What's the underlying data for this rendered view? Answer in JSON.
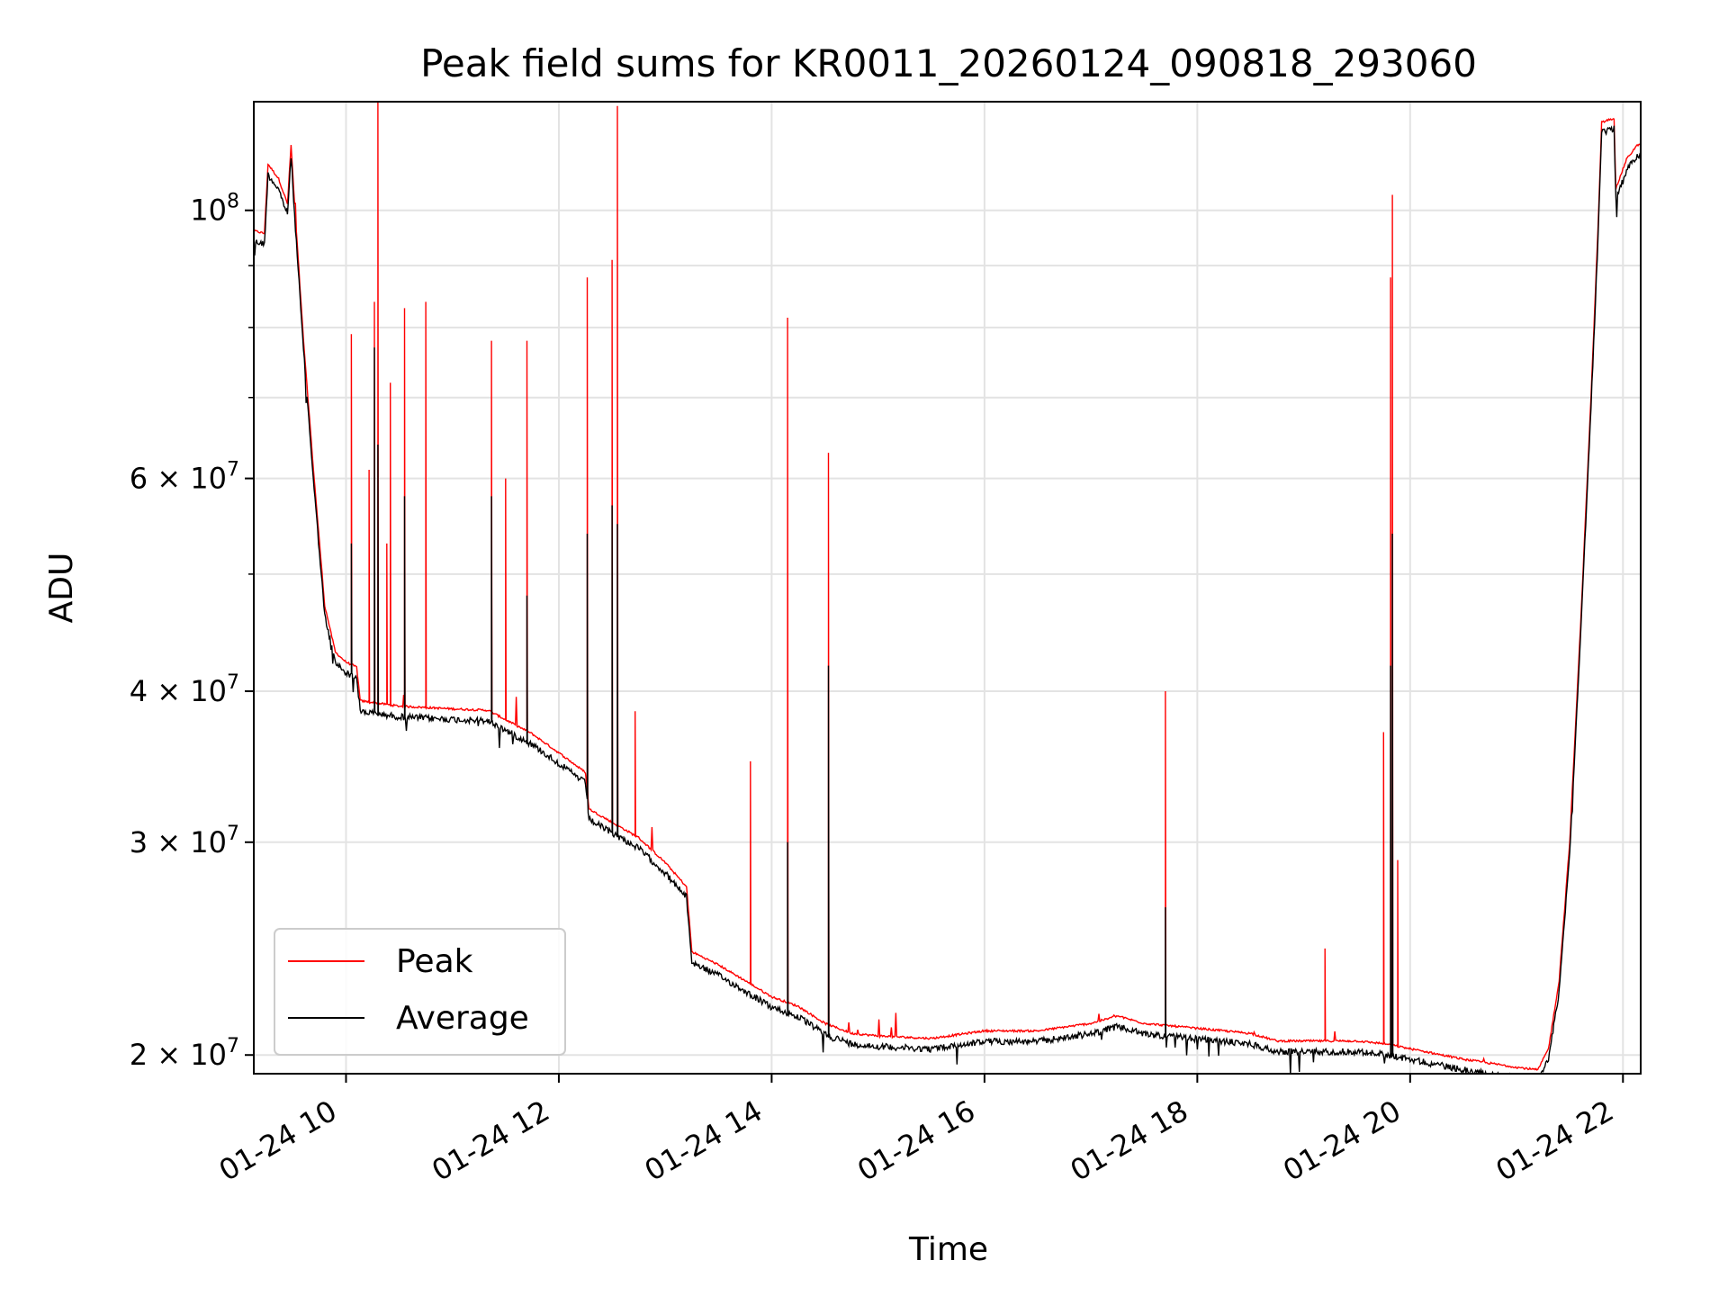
{
  "chart_data": {
    "type": "line",
    "title": "Peak field sums for KR0011_20260124_090818_293060",
    "xlabel": "Time",
    "ylabel": "ADU",
    "yscale": "log",
    "ylim": [
      19300000,
      123000000
    ],
    "xlim": [
      "2026-01-24 09:08",
      "2026-01-24 22:10"
    ],
    "grid": true,
    "legend_position": "lower-left",
    "x_ticks": [
      {
        "value": "2026-01-24 10:00",
        "label": "01-24 10"
      },
      {
        "value": "2026-01-24 12:00",
        "label": "01-24 12"
      },
      {
        "value": "2026-01-24 14:00",
        "label": "01-24 14"
      },
      {
        "value": "2026-01-24 16:00",
        "label": "01-24 16"
      },
      {
        "value": "2026-01-24 18:00",
        "label": "01-24 18"
      },
      {
        "value": "2026-01-24 20:00",
        "label": "01-24 20"
      },
      {
        "value": "2026-01-24 22:00",
        "label": "01-24 22"
      }
    ],
    "y_ticks": [
      {
        "value": 20000000,
        "mantissa": "2 × 10",
        "exp": "7"
      },
      {
        "value": 30000000,
        "mantissa": "3 × 10",
        "exp": "7"
      },
      {
        "value": 40000000,
        "mantissa": "4 × 10",
        "exp": "7"
      },
      {
        "value": 60000000,
        "mantissa": "6 × 10",
        "exp": "7"
      },
      {
        "value": 100000000,
        "mantissa": "10",
        "exp": "8"
      }
    ],
    "y_minor_ticks": [
      50000000,
      70000000,
      80000000,
      90000000
    ],
    "series": [
      {
        "name": "Peak",
        "color": "#ff0000",
        "baseline": [
          [
            "2026-01-24 09:08",
            96000000
          ],
          [
            "2026-01-24 09:14",
            95500000
          ],
          [
            "2026-01-24 09:16",
            109000000
          ],
          [
            "2026-01-24 09:22",
            106000000
          ],
          [
            "2026-01-24 09:27",
            101000000
          ],
          [
            "2026-01-24 09:29",
            113000000
          ],
          [
            "2026-01-24 09:31",
            101000000
          ],
          [
            "2026-01-24 09:36",
            78000000
          ],
          [
            "2026-01-24 09:42",
            60000000
          ],
          [
            "2026-01-24 09:48",
            47000000
          ],
          [
            "2026-01-24 09:54",
            43000000
          ],
          [
            "2026-01-24 10:00",
            42200000
          ],
          [
            "2026-01-24 10:06",
            41800000
          ],
          [
            "2026-01-24 10:08",
            39200000
          ],
          [
            "2026-01-24 10:30",
            38800000
          ],
          [
            "2026-01-24 11:00",
            38600000
          ],
          [
            "2026-01-24 11:20",
            38500000
          ],
          [
            "2026-01-24 11:45",
            36800000
          ],
          [
            "2026-01-24 12:00",
            35500000
          ],
          [
            "2026-01-24 12:15",
            34200000
          ],
          [
            "2026-01-24 12:17",
            31900000
          ],
          [
            "2026-01-24 12:30",
            31100000
          ],
          [
            "2026-01-24 12:45",
            30200000
          ],
          [
            "2026-01-24 13:00",
            28800000
          ],
          [
            "2026-01-24 13:12",
            27500000
          ],
          [
            "2026-01-24 13:15",
            24300000
          ],
          [
            "2026-01-24 13:30",
            23700000
          ],
          [
            "2026-01-24 13:45",
            23000000
          ],
          [
            "2026-01-24 14:00",
            22300000
          ],
          [
            "2026-01-24 14:15",
            21900000
          ],
          [
            "2026-01-24 14:30",
            21200000
          ],
          [
            "2026-01-24 14:45",
            20800000
          ],
          [
            "2026-01-24 15:00",
            20700000
          ],
          [
            "2026-01-24 15:30",
            20600000
          ],
          [
            "2026-01-24 16:00",
            20900000
          ],
          [
            "2026-01-24 16:30",
            20900000
          ],
          [
            "2026-01-24 17:00",
            21200000
          ],
          [
            "2026-01-24 17:15",
            21500000
          ],
          [
            "2026-01-24 17:30",
            21200000
          ],
          [
            "2026-01-24 18:00",
            21000000
          ],
          [
            "2026-01-24 18:30",
            20800000
          ],
          [
            "2026-01-24 18:45",
            20500000
          ],
          [
            "2026-01-24 19:00",
            20500000
          ],
          [
            "2026-01-24 19:30",
            20500000
          ],
          [
            "2026-01-24 19:45",
            20400000
          ],
          [
            "2026-01-24 20:00",
            20200000
          ],
          [
            "2026-01-24 20:30",
            19800000
          ],
          [
            "2026-01-24 21:00",
            19500000
          ],
          [
            "2026-01-24 21:12",
            19400000
          ],
          [
            "2026-01-24 21:18",
            20200000
          ],
          [
            "2026-01-24 21:24",
            23000000
          ],
          [
            "2026-01-24 21:30",
            30000000
          ],
          [
            "2026-01-24 21:36",
            45000000
          ],
          [
            "2026-01-24 21:42",
            70000000
          ],
          [
            "2026-01-24 21:46",
            97000000
          ],
          [
            "2026-01-24 21:48",
            118000000
          ],
          [
            "2026-01-24 21:55",
            119000000
          ],
          [
            "2026-01-24 21:56",
            104000000
          ],
          [
            "2026-01-24 22:02",
            110000000
          ],
          [
            "2026-01-24 22:08",
            113000000
          ]
        ],
        "spikes": [
          [
            "2026-01-24 10:03",
            79000000
          ],
          [
            "2026-01-24 10:13",
            61000000
          ],
          [
            "2026-01-24 10:16",
            84000000
          ],
          [
            "2026-01-24 10:18",
            123000000
          ],
          [
            "2026-01-24 10:23",
            53000000
          ],
          [
            "2026-01-24 10:25",
            72000000
          ],
          [
            "2026-01-24 10:33",
            83000000
          ],
          [
            "2026-01-24 10:45",
            84000000
          ],
          [
            "2026-01-24 11:22",
            78000000
          ],
          [
            "2026-01-24 11:30",
            60000000
          ],
          [
            "2026-01-24 11:42",
            78000000
          ],
          [
            "2026-01-24 12:16",
            88000000
          ],
          [
            "2026-01-24 12:30",
            91000000
          ],
          [
            "2026-01-24 12:33",
            122000000
          ],
          [
            "2026-01-24 12:43",
            38500000
          ],
          [
            "2026-01-24 13:48",
            35000000
          ],
          [
            "2026-01-24 14:09",
            81500000
          ],
          [
            "2026-01-24 14:32",
            63000000
          ],
          [
            "2026-01-24 17:42",
            40000000
          ],
          [
            "2026-01-24 19:45",
            37000000
          ],
          [
            "2026-01-24 19:49",
            88000000
          ],
          [
            "2026-01-24 19:50",
            103000000
          ],
          [
            "2026-01-24 19:53",
            29000000
          ],
          [
            "2026-01-24 19:12",
            24500000
          ]
        ]
      },
      {
        "name": "Average",
        "color": "#000000",
        "spikes": [
          [
            "2026-01-24 10:03",
            53000000
          ],
          [
            "2026-01-24 10:16",
            77000000
          ],
          [
            "2026-01-24 10:18",
            64000000
          ],
          [
            "2026-01-24 10:33",
            58000000
          ],
          [
            "2026-01-24 11:22",
            58000000
          ],
          [
            "2026-01-24 11:42",
            48000000
          ],
          [
            "2026-01-24 12:16",
            54000000
          ],
          [
            "2026-01-24 12:30",
            57000000
          ],
          [
            "2026-01-24 12:33",
            55000000
          ],
          [
            "2026-01-24 14:09",
            30000000
          ],
          [
            "2026-01-24 14:32",
            42000000
          ],
          [
            "2026-01-24 17:42",
            26500000
          ],
          [
            "2026-01-24 19:49",
            42000000
          ],
          [
            "2026-01-24 19:50",
            54000000
          ]
        ]
      }
    ]
  }
}
